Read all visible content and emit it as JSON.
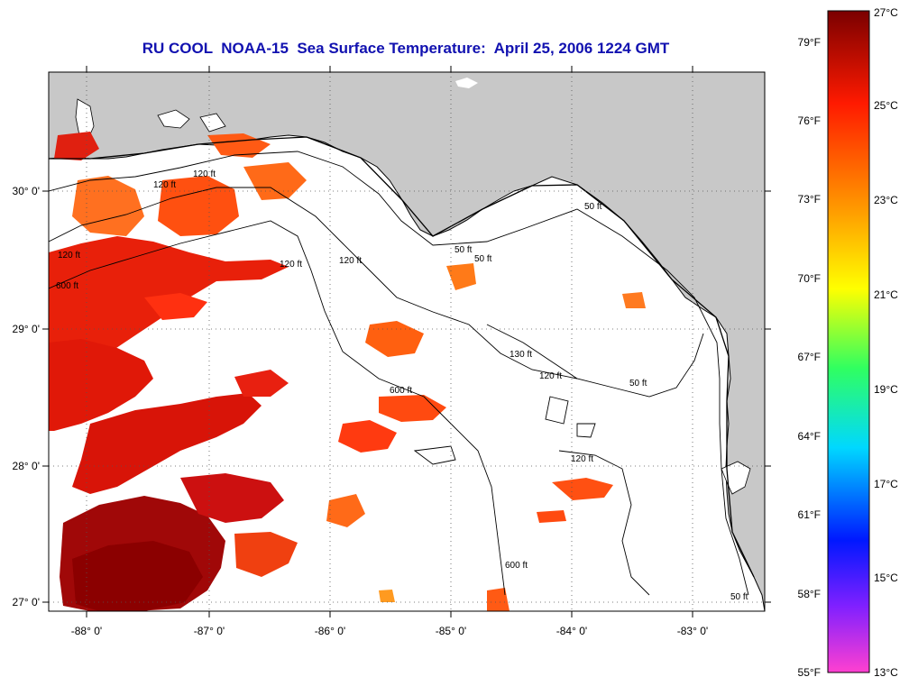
{
  "title": "RU COOL  NOAA-15  Sea Surface Temperature:  April 25, 2006 1224 GMT",
  "lon_ticks": [
    "-88° 0'",
    "-87° 0'",
    "-86° 0'",
    "-85° 0'",
    "-84° 0'",
    "-83° 0'"
  ],
  "lat_ticks": [
    "30° 0'",
    "29° 0'",
    "28° 0'",
    "27° 0'"
  ],
  "contour_labels": [
    "50 ft",
    "120 ft",
    "120 ft",
    "120 ft",
    "600 ft",
    "120 ft",
    "50 ft",
    "50 ft",
    "120 ft",
    "600 ft",
    "130 ft",
    "50 ft",
    "120 ft",
    "120 ft",
    "600 ft",
    "50 ft"
  ],
  "colorbar": {
    "fahrenheit": [
      "79°F",
      "76°F",
      "73°F",
      "70°F",
      "67°F",
      "64°F",
      "61°F",
      "58°F",
      "55°F"
    ],
    "celsius": [
      "27°C",
      "25°C",
      "23°C",
      "21°C",
      "19°C",
      "17°C",
      "15°C",
      "13°C"
    ],
    "stops": [
      "#8b0000",
      "#ff2000",
      "#ff9000",
      "#ffff00",
      "#00ff60",
      "#00e0ff",
      "#0020ff",
      "#8000ff",
      "#ff40c0"
    ]
  },
  "colors": {
    "title": "#1111b0",
    "land": "#c8c8c8",
    "ocean": "#ffffff"
  }
}
